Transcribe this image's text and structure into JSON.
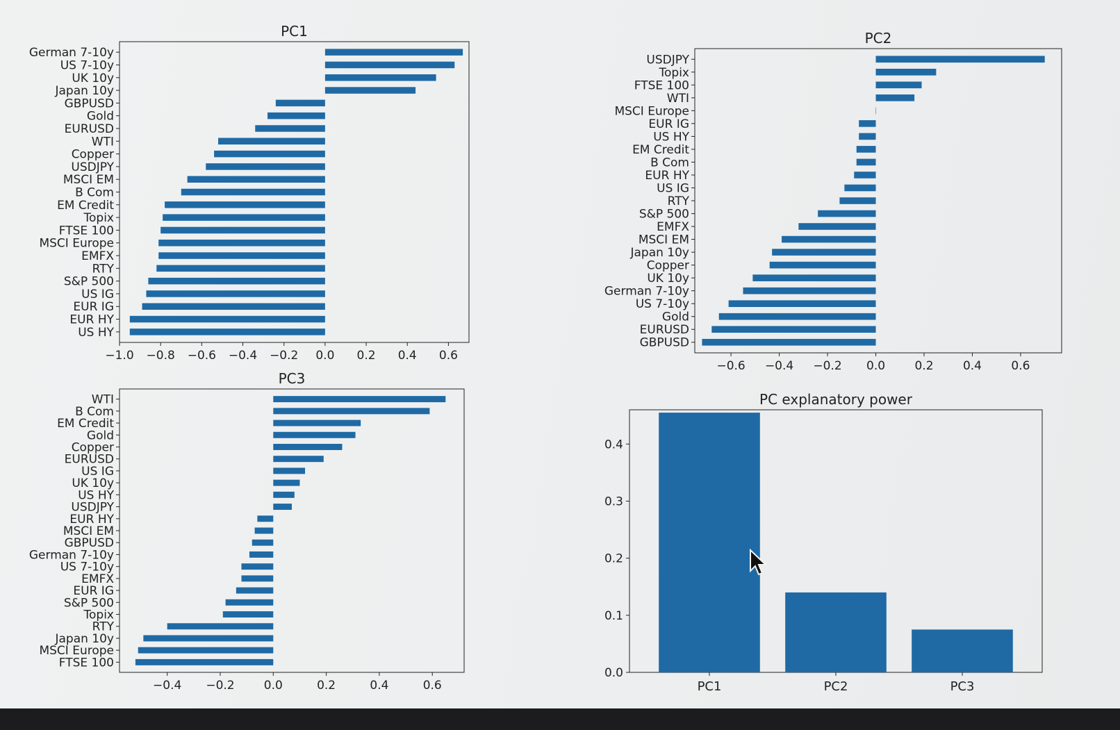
{
  "colors": {
    "bar": "#1f6aa5",
    "axis": "#222222",
    "background": "#f1f3f3"
  },
  "chart_data": [
    {
      "type": "bar",
      "orientation": "horizontal",
      "title": "PC1",
      "xlim": [
        -1.0,
        0.7
      ],
      "xticks": [
        -1.0,
        -0.8,
        -0.6,
        -0.4,
        -0.2,
        0.0,
        0.2,
        0.4,
        0.6
      ],
      "xtick_labels": [
        "−1.0",
        "−0.8",
        "−0.6",
        "−0.4",
        "−0.2",
        "0.0",
        "0.2",
        "0.4",
        "0.6"
      ],
      "categories": [
        "German 7-10y",
        "US 7-10y",
        "UK 10y",
        "Japan 10y",
        "GBPUSD",
        "Gold",
        "EURUSD",
        "WTI",
        "Copper",
        "USDJPY",
        "MSCI EM",
        "B Com",
        "EM Credit",
        "Topix",
        "FTSE 100",
        "MSCI Europe",
        "EMFX",
        "RTY",
        "S&P 500",
        "US IG",
        "EUR IG",
        "EUR HY",
        "US HY"
      ],
      "values": [
        0.67,
        0.63,
        0.54,
        0.44,
        -0.24,
        -0.28,
        -0.34,
        -0.52,
        -0.54,
        -0.58,
        -0.67,
        -0.7,
        -0.78,
        -0.79,
        -0.8,
        -0.81,
        -0.81,
        -0.82,
        -0.86,
        -0.87,
        -0.89,
        -0.95,
        -0.95
      ]
    },
    {
      "type": "bar",
      "orientation": "horizontal",
      "title": "PC2",
      "xlim": [
        -0.75,
        0.77
      ],
      "xticks": [
        -0.6,
        -0.4,
        -0.2,
        0.0,
        0.2,
        0.4,
        0.6
      ],
      "xtick_labels": [
        "−0.6",
        "−0.4",
        "−0.2",
        "0.0",
        "0.2",
        "0.4",
        "0.6"
      ],
      "categories": [
        "USDJPY",
        "Topix",
        "FTSE 100",
        "WTI",
        "MSCI Europe",
        "EUR IG",
        "US HY",
        "EM Credit",
        "B Com",
        "EUR HY",
        "US IG",
        "RTY",
        "S&P 500",
        "EMFX",
        "MSCI EM",
        "Japan 10y",
        "Copper",
        "UK 10y",
        "German 7-10y",
        "US 7-10y",
        "Gold",
        "EURUSD",
        "GBPUSD"
      ],
      "values": [
        0.7,
        0.25,
        0.19,
        0.16,
        0.0,
        -0.07,
        -0.07,
        -0.08,
        -0.08,
        -0.09,
        -0.13,
        -0.15,
        -0.24,
        -0.32,
        -0.39,
        -0.43,
        -0.44,
        -0.51,
        -0.55,
        -0.61,
        -0.65,
        -0.68,
        -0.72
      ]
    },
    {
      "type": "bar",
      "orientation": "horizontal",
      "title": "PC3",
      "xlim": [
        -0.58,
        0.72
      ],
      "xticks": [
        -0.4,
        -0.2,
        0.0,
        0.2,
        0.4,
        0.6
      ],
      "xtick_labels": [
        "−0.4",
        "−0.2",
        "0.0",
        "0.2",
        "0.4",
        "0.6"
      ],
      "categories": [
        "WTI",
        "B Com",
        "EM Credit",
        "Gold",
        "Copper",
        "EURUSD",
        "US IG",
        "UK 10y",
        "US HY",
        "USDJPY",
        "EUR HY",
        "MSCI EM",
        "GBPUSD",
        "German 7-10y",
        "US 7-10y",
        "EMFX",
        "EUR IG",
        "S&P 500",
        "Topix",
        "RTY",
        "Japan 10y",
        "MSCI Europe",
        "FTSE 100"
      ],
      "values": [
        0.65,
        0.59,
        0.33,
        0.31,
        0.26,
        0.19,
        0.12,
        0.1,
        0.08,
        0.07,
        -0.06,
        -0.07,
        -0.08,
        -0.09,
        -0.12,
        -0.12,
        -0.14,
        -0.18,
        -0.19,
        -0.4,
        -0.49,
        -0.51,
        -0.52
      ]
    },
    {
      "type": "bar",
      "orientation": "vertical",
      "title": "PC explanatory power",
      "ylim": [
        0.0,
        0.46
      ],
      "yticks": [
        0.0,
        0.1,
        0.2,
        0.3,
        0.4
      ],
      "ytick_labels": [
        "0.0",
        "0.1",
        "0.2",
        "0.3",
        "0.4"
      ],
      "categories": [
        "PC1",
        "PC2",
        "PC3"
      ],
      "values": [
        0.455,
        0.14,
        0.075
      ]
    }
  ]
}
